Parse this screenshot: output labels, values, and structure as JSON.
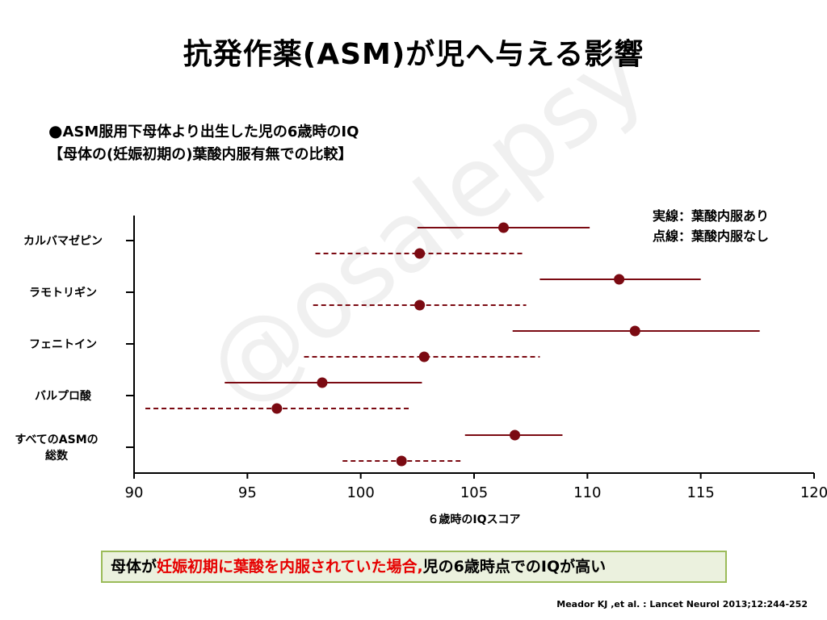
{
  "title": "抗発作薬(ASM)が児へ与える影響",
  "subtitle": {
    "bullet": "●",
    "line1": "ASM服用下母体より出生した児の6歳時のIQ",
    "line2": "【母体の(妊娠初期の)葉酸内服有無での比較】"
  },
  "legend": {
    "solid": "実線：葉酸内服あり",
    "dashed": "点線：葉酸内服なし"
  },
  "conclusion": {
    "part1": "母体が",
    "part2": "妊娠初期に葉酸を内服されていた場合,",
    "part3": "児の6歳時点でのIQが高い"
  },
  "source": "Meador KJ ,et al. : Lancet Neurol 2013;12:244-252",
  "watermark": "@osalepsy",
  "colors": {
    "marker": "#7b0a12",
    "accent_red": "#e60000",
    "box_bg": "#ebf1de",
    "box_border": "#9bbb59"
  },
  "chart_data": {
    "type": "forest",
    "xlabel": "６歳時のIQスコア",
    "xlim": [
      90,
      120
    ],
    "xticks": [
      "90",
      "95",
      "100",
      "105",
      "110",
      "115",
      "120"
    ],
    "categories": [
      "カルバマゼピン",
      "ラモトリギン",
      "フェニトイン",
      "バルプロ酸",
      "すべてのASMの総数"
    ],
    "category_label_lines": [
      [
        "カルバマゼピン"
      ],
      [
        "ラモトリギン"
      ],
      [
        "フェニトイン"
      ],
      [
        "バルプロ酸"
      ],
      [
        "すべてのASMの",
        "総数"
      ]
    ],
    "series": [
      {
        "name": "実線：葉酸内服あり",
        "line_style": "solid",
        "estimates": [
          106.3,
          111.4,
          112.1,
          98.3,
          106.8
        ],
        "lower": [
          102.5,
          107.9,
          106.7,
          94.0,
          104.6
        ],
        "upper": [
          110.1,
          115.0,
          117.6,
          102.7,
          108.9
        ]
      },
      {
        "name": "点線：葉酸内服なし",
        "line_style": "dashed",
        "estimates": [
          102.6,
          102.6,
          102.8,
          96.3,
          101.8
        ],
        "lower": [
          98.0,
          97.9,
          97.5,
          90.5,
          99.2
        ],
        "upper": [
          107.2,
          107.3,
          107.9,
          102.2,
          104.4
        ]
      }
    ],
    "grid": false,
    "legend_position": "top-right"
  }
}
